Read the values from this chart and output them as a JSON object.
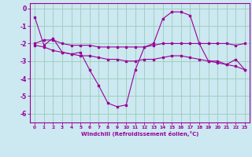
{
  "xlabel": "Windchill (Refroidissement éolien,°C)",
  "background_color": "#cce8f0",
  "grid_color": "#99ccbb",
  "line_color": "#990099",
  "xlim": [
    -0.5,
    23.5
  ],
  "ylim": [
    -6.5,
    0.3
  ],
  "yticks": [
    0,
    -1,
    -2,
    -3,
    -4,
    -5,
    -6
  ],
  "xticks": [
    0,
    1,
    2,
    3,
    4,
    5,
    6,
    7,
    8,
    9,
    10,
    11,
    12,
    13,
    14,
    15,
    16,
    17,
    18,
    19,
    20,
    21,
    22,
    23
  ],
  "line1_x": [
    0,
    1,
    2,
    3,
    4,
    5,
    6,
    7,
    8,
    9,
    10,
    11,
    12,
    13,
    14,
    15,
    16,
    17,
    18,
    19,
    20,
    21,
    22,
    23
  ],
  "line1": [
    -0.5,
    -2.1,
    -1.7,
    -2.5,
    -2.6,
    -2.5,
    -3.5,
    -4.4,
    -5.4,
    -5.6,
    -5.5,
    -3.5,
    -2.2,
    -2.0,
    -0.6,
    -0.2,
    -0.2,
    -0.4,
    -2.0,
    -3.0,
    -3.0,
    -3.2,
    -2.9,
    -3.5
  ],
  "line2_x": [
    0,
    1,
    2,
    3,
    4,
    5,
    6,
    7,
    8,
    9,
    10,
    11,
    12,
    13,
    14,
    15,
    16,
    17,
    18,
    19,
    20,
    21,
    22,
    23
  ],
  "line2": [
    -2.0,
    -1.8,
    -1.8,
    -2.0,
    -2.1,
    -2.1,
    -2.1,
    -2.2,
    -2.2,
    -2.2,
    -2.2,
    -2.2,
    -2.2,
    -2.1,
    -2.0,
    -2.0,
    -2.0,
    -2.0,
    -2.0,
    -2.0,
    -2.0,
    -2.0,
    -2.1,
    -2.0
  ],
  "line3_x": [
    0,
    1,
    2,
    3,
    4,
    5,
    6,
    7,
    8,
    9,
    10,
    11,
    12,
    13,
    14,
    15,
    16,
    17,
    18,
    19,
    20,
    21,
    22,
    23
  ],
  "line3": [
    -2.1,
    -2.2,
    -2.4,
    -2.5,
    -2.6,
    -2.7,
    -2.7,
    -2.8,
    -2.9,
    -2.9,
    -3.0,
    -3.0,
    -2.9,
    -2.9,
    -2.8,
    -2.7,
    -2.7,
    -2.8,
    -2.9,
    -3.0,
    -3.1,
    -3.2,
    -3.3,
    -3.5
  ]
}
